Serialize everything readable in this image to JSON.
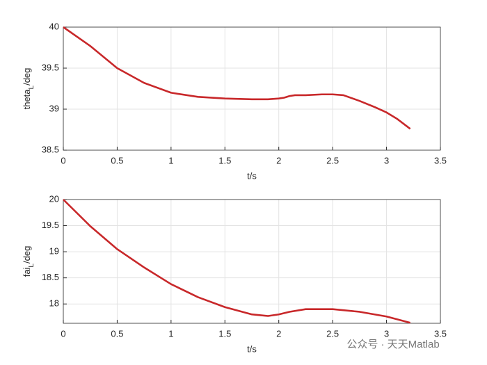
{
  "chart_data": [
    {
      "type": "line",
      "xlabel": "t/s",
      "ylabel": [
        "theta",
        "L",
        "/deg"
      ],
      "x": [
        0,
        0.25,
        0.5,
        0.75,
        1.0,
        1.25,
        1.5,
        1.75,
        1.9,
        2.0,
        2.05,
        2.1,
        2.15,
        2.25,
        2.4,
        2.5,
        2.6,
        2.75,
        2.9,
        3.0,
        3.1,
        3.22
      ],
      "series": [
        {
          "color": "#c8282a",
          "values": [
            40,
            39.77,
            39.5,
            39.32,
            39.2,
            39.15,
            39.13,
            39.12,
            39.12,
            39.13,
            39.14,
            39.16,
            39.17,
            39.17,
            39.18,
            39.18,
            39.17,
            39.1,
            39.02,
            38.96,
            38.88,
            38.76
          ]
        }
      ],
      "xlim": [
        0,
        3.5
      ],
      "xticks": [
        0,
        0.5,
        1,
        1.5,
        2,
        2.5,
        3,
        3.5
      ],
      "ylim": [
        38.5,
        40
      ],
      "yticks": [
        38.5,
        39,
        39.5,
        40
      ],
      "grid": true
    },
    {
      "type": "line",
      "xlabel": "t/s",
      "ylabel": [
        "fai",
        "L",
        "/deg"
      ],
      "x": [
        0,
        0.25,
        0.5,
        0.75,
        1.0,
        1.25,
        1.5,
        1.75,
        1.9,
        2.0,
        2.1,
        2.25,
        2.5,
        2.75,
        3.0,
        3.22
      ],
      "series": [
        {
          "color": "#c8282a",
          "values": [
            20,
            19.49,
            19.05,
            18.7,
            18.38,
            18.13,
            17.94,
            17.8,
            17.77,
            17.8,
            17.85,
            17.9,
            17.9,
            17.85,
            17.76,
            17.64
          ]
        }
      ],
      "xlim": [
        0,
        3.5
      ],
      "xticks": [
        0,
        0.5,
        1,
        1.5,
        2,
        2.5,
        3,
        3.5
      ],
      "ylim": [
        17.63,
        20
      ],
      "yticks": [
        18,
        18.5,
        19,
        19.5,
        20
      ],
      "grid": true
    }
  ],
  "watermark": "公众号 · 天天Matlab"
}
